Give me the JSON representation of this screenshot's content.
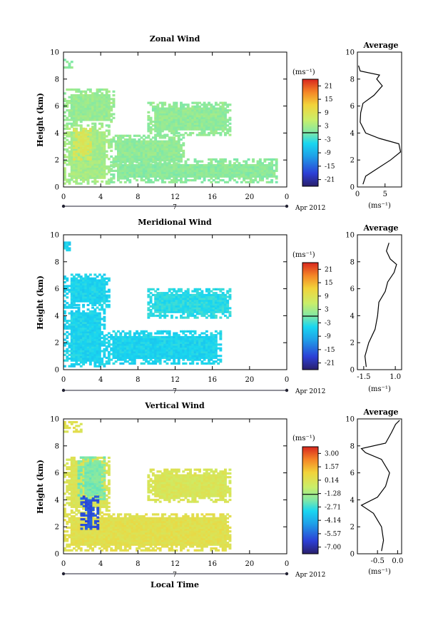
{
  "figure": {
    "time_axis_label": "Local Time",
    "date_label": "Apr 2012",
    "day_label": "7",
    "height_label": "Height (km)",
    "unit_label": "(ms⁻¹)",
    "average_title": "Average"
  },
  "chart_data": [
    {
      "type": "heatmap",
      "title": "Zonal Wind",
      "xlabel": "",
      "ylabel": "Height (km)",
      "xlim": [
        0,
        24
      ],
      "ylim": [
        0,
        10
      ],
      "x_ticks": [
        "0",
        "4",
        "8",
        "12",
        "16",
        "20",
        "0"
      ],
      "y_ticks": [
        "0",
        "2",
        "4",
        "6",
        "8",
        "10"
      ],
      "colorbar": {
        "unit": "(ms⁻¹)",
        "range": [
          -24,
          24
        ],
        "ticks": [
          "21",
          "15",
          "9",
          "3",
          "-3",
          "-9",
          "-15",
          "-21"
        ],
        "zero_line_value": 0
      },
      "regions": [
        {
          "t": [
            0.0,
            1.0
          ],
          "h": [
            8.8,
            9.5
          ],
          "v": 1
        },
        {
          "t": [
            0.0,
            5.5
          ],
          "h": [
            4.5,
            7.2
          ],
          "v": 2
        },
        {
          "t": [
            0.0,
            5.0
          ],
          "h": [
            0.2,
            4.5
          ],
          "v": 3
        },
        {
          "t": [
            1.0,
            3.0
          ],
          "h": [
            2.0,
            4.3
          ],
          "v": 8
        },
        {
          "t": [
            5.0,
            13.0
          ],
          "h": [
            1.5,
            3.8
          ],
          "v": 1.5
        },
        {
          "t": [
            5.0,
            23.0
          ],
          "h": [
            0.3,
            2.0
          ],
          "v": 1.0
        },
        {
          "t": [
            9.0,
            18.0
          ],
          "h": [
            3.8,
            6.2
          ],
          "v": 1.5
        }
      ],
      "average_profile": {
        "xlim": [
          0,
          8
        ],
        "x_ticks": [
          "0",
          "5"
        ],
        "xlabel": "(ms⁻¹)",
        "height": [
          0.2,
          0.8,
          1.2,
          2.0,
          2.6,
          3.2,
          3.6,
          4.0,
          4.8,
          5.5,
          6.2,
          6.8,
          7.5,
          8.0,
          8.3,
          8.6,
          9.0
        ],
        "value": [
          1.0,
          1.5,
          3.0,
          6.0,
          7.8,
          7.5,
          4.0,
          1.5,
          0.5,
          0.6,
          1.0,
          3.0,
          4.5,
          3.5,
          4.0,
          0.5,
          0.2
        ]
      }
    },
    {
      "type": "heatmap",
      "title": "Meridional Wind",
      "xlabel": "",
      "ylabel": "Height (km)",
      "xlim": [
        0,
        24
      ],
      "ylim": [
        0,
        10
      ],
      "x_ticks": [
        "0",
        "4",
        "8",
        "12",
        "16",
        "20",
        "0"
      ],
      "y_ticks": [
        "0",
        "2",
        "4",
        "6",
        "8",
        "10"
      ],
      "colorbar": {
        "unit": "(ms⁻¹)",
        "range": [
          -24,
          24
        ],
        "ticks": [
          "21",
          "15",
          "9",
          "3",
          "-3",
          "-9",
          "-15",
          "-21"
        ],
        "zero_line_value": 0
      },
      "regions": [
        {
          "t": [
            0.0,
            0.6
          ],
          "h": [
            8.8,
            9.4
          ],
          "v": -5
        },
        {
          "t": [
            0.0,
            5.0
          ],
          "h": [
            4.6,
            7.0
          ],
          "v": -5
        },
        {
          "t": [
            0.0,
            4.5
          ],
          "h": [
            0.2,
            4.6
          ],
          "v": -5
        },
        {
          "t": [
            4.5,
            17.0
          ],
          "h": [
            0.4,
            2.8
          ],
          "v": -5
        },
        {
          "t": [
            9.0,
            18.0
          ],
          "h": [
            3.8,
            6.0
          ],
          "v": -4
        }
      ],
      "average_profile": {
        "xlim": [
          -2.0,
          1.5
        ],
        "x_ticks": [
          "-1.5",
          "1.0"
        ],
        "xlabel": "(ms⁻¹)",
        "height": [
          0.2,
          1.0,
          2.0,
          3.0,
          4.0,
          5.0,
          5.8,
          6.5,
          7.2,
          7.8,
          8.2,
          8.8,
          9.4
        ],
        "value": [
          -1.3,
          -1.4,
          -1.1,
          -0.6,
          -0.4,
          -0.3,
          0.2,
          0.4,
          0.9,
          1.1,
          0.6,
          0.3,
          0.5
        ]
      }
    },
    {
      "type": "heatmap",
      "title": "Vertical Wind",
      "xlabel": "Local Time",
      "ylabel": "Height (km)",
      "xlim": [
        0,
        24
      ],
      "ylim": [
        0,
        10
      ],
      "x_ticks": [
        "0",
        "4",
        "8",
        "12",
        "16",
        "20",
        "0"
      ],
      "y_ticks": [
        "0",
        "2",
        "4",
        "6",
        "8",
        "10"
      ],
      "colorbar": {
        "unit": "(ms⁻¹)",
        "range": [
          -8.5,
          4.5
        ],
        "ticks": [
          "3.00",
          "1.57",
          "0.14",
          "-1.28",
          "-2.71",
          "-4.14",
          "-5.57",
          "-7.00"
        ],
        "zero_line_value": -1.28
      },
      "regions": [
        {
          "t": [
            0.0,
            2.0
          ],
          "h": [
            9.0,
            9.8
          ],
          "v": 0.5
        },
        {
          "t": [
            0.0,
            18.0
          ],
          "h": [
            0.2,
            3.0
          ],
          "v": 0.6
        },
        {
          "t": [
            0.0,
            5.0
          ],
          "h": [
            3.0,
            7.2
          ],
          "v": 0.3
        },
        {
          "t": [
            1.5,
            4.5
          ],
          "h": [
            4.0,
            7.2
          ],
          "v": -2.0
        },
        {
          "t": [
            1.8,
            3.6
          ],
          "h": [
            1.8,
            4.2
          ],
          "v": -6.5
        },
        {
          "t": [
            9.0,
            18.0
          ],
          "h": [
            3.8,
            6.2
          ],
          "v": 0.2
        }
      ],
      "average_profile": {
        "xlim": [
          -1.0,
          0.1
        ],
        "x_ticks": [
          "-0.5",
          "0.0"
        ],
        "xlabel": "(ms⁻¹)",
        "height": [
          0.2,
          1.0,
          2.0,
          3.0,
          3.6,
          4.2,
          5.0,
          6.0,
          7.0,
          7.5,
          7.8,
          8.2,
          9.0,
          9.6,
          9.9
        ],
        "value": [
          -0.4,
          -0.35,
          -0.4,
          -0.6,
          -0.9,
          -0.5,
          -0.3,
          -0.2,
          -0.4,
          -0.8,
          -0.9,
          -0.3,
          -0.15,
          -0.05,
          0.05
        ]
      }
    }
  ]
}
